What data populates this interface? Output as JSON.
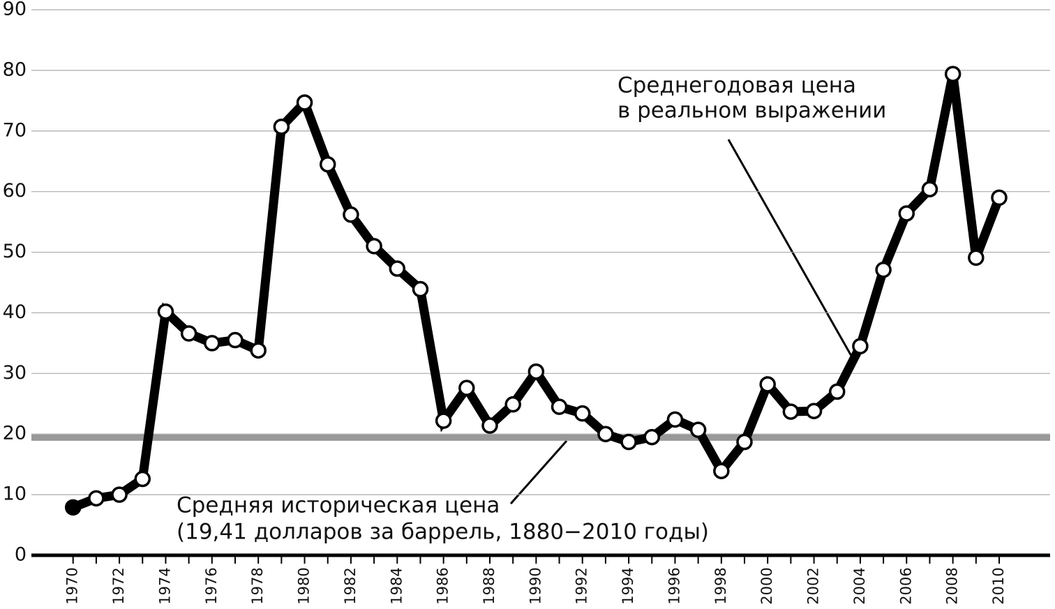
{
  "chart_data": {
    "type": "line",
    "x": [
      1970,
      1971,
      1972,
      1973,
      1974,
      1975,
      1976,
      1977,
      1978,
      1979,
      1980,
      1981,
      1982,
      1983,
      1984,
      1985,
      1986,
      1987,
      1988,
      1989,
      1990,
      1991,
      1992,
      1993,
      1994,
      1995,
      1996,
      1997,
      1998,
      1999,
      2000,
      2001,
      2002,
      2003,
      2004,
      2005,
      2006,
      2007,
      2008,
      2009,
      2010
    ],
    "series": [
      {
        "name": "Среднегодовая цена в реальном выражении",
        "color": "#000000",
        "values": [
          7.9,
          9.4,
          10.0,
          12.6,
          40.2,
          36.6,
          35.0,
          35.5,
          33.8,
          70.7,
          74.7,
          64.5,
          56.2,
          51.0,
          47.3,
          43.9,
          22.2,
          27.6,
          21.4,
          24.9,
          30.3,
          24.5,
          23.4,
          20.0,
          18.7,
          19.5,
          22.4,
          20.7,
          13.9,
          18.7,
          28.2,
          23.7,
          23.8,
          27.0,
          34.5,
          47.1,
          56.4,
          60.4,
          79.4,
          49.1,
          59.0
        ]
      }
    ],
    "reference_line": {
      "value": 19.41,
      "color": "#999999"
    },
    "annotations": [
      [
        "Среднегодовая цена",
        "в реальном выражении"
      ],
      [
        "Средняя историческая цена",
        "(19,41 долларов за баррель, 1880−2010 годы)"
      ]
    ],
    "xlim": [
      1968.2,
      2012.2
    ],
    "xticks": [
      1970,
      1972,
      1974,
      1976,
      1978,
      1980,
      1982,
      1984,
      1986,
      1988,
      1990,
      1992,
      1994,
      1996,
      1998,
      2000,
      2002,
      2004,
      2006,
      2008,
      2010
    ],
    "ylim": [
      0,
      90
    ],
    "yticks": [
      0,
      10,
      20,
      30,
      40,
      50,
      60,
      70,
      80,
      90
    ],
    "grid": true
  }
}
